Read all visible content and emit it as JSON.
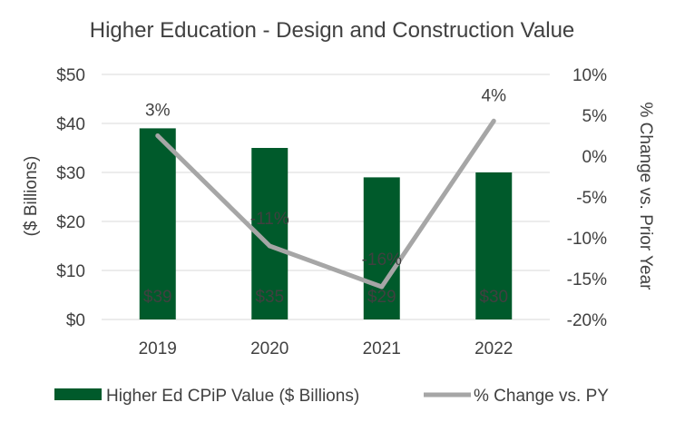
{
  "chart_data": {
    "type": "bar+line",
    "title": "Higher Education - Design and Construction Value",
    "categories": [
      "2019",
      "2020",
      "2021",
      "2022"
    ],
    "series": [
      {
        "name": "Higher Ed CPiP Value ($ Billions)",
        "type": "bar",
        "axis": "left",
        "color": "#005A2B",
        "values": [
          39,
          35,
          29,
          30
        ],
        "labels": [
          "$39",
          "$35",
          "$29",
          "$30"
        ]
      },
      {
        "name": "% Change vs. PY",
        "type": "line",
        "axis": "right",
        "color": "#A6A6A6",
        "values": [
          2.5,
          -11,
          -16,
          4.3
        ],
        "labels": [
          "3%",
          "-11%",
          "-16%",
          "4%"
        ]
      }
    ],
    "y_left": {
      "label": "($ Billions)",
      "range": [
        0,
        50
      ],
      "ticks": [
        "$0",
        "$10",
        "$20",
        "$30",
        "$40",
        "$50"
      ]
    },
    "y_right": {
      "label": "% Change vs. Prior Year",
      "range": [
        -20,
        10
      ],
      "ticks": [
        "-20%",
        "-15%",
        "-10%",
        "-5%",
        "0%",
        "5%",
        "10%"
      ]
    },
    "legend_position": "bottom",
    "grid": true
  }
}
